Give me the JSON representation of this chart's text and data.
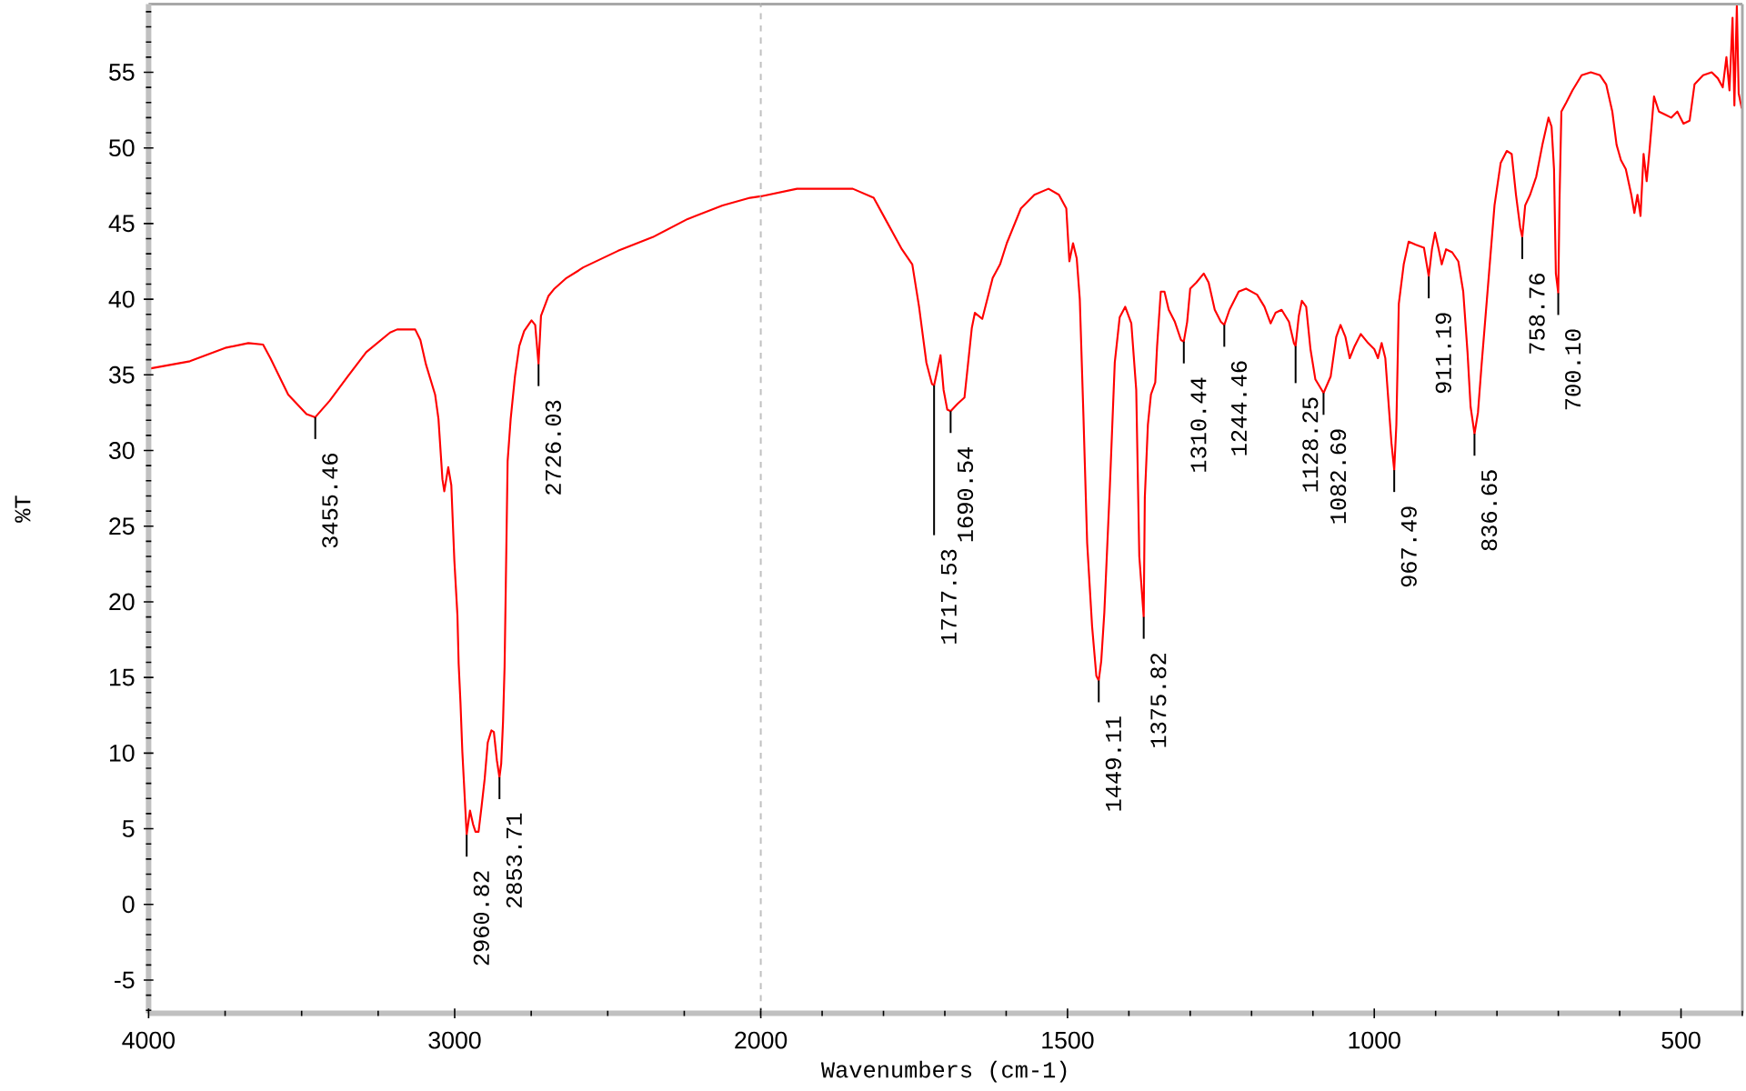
{
  "chart_data": [
    {
      "type": "line",
      "ylabel": "%T",
      "color": "#ff0000",
      "x": [
        4000,
        3865,
        3746,
        3674,
        3626,
        3602,
        3544,
        3484,
        3455.46,
        3408,
        3349,
        3289,
        3211,
        3188,
        3129,
        3112,
        3094,
        3064,
        3053,
        3040,
        3034,
        3021,
        3011,
        3001,
        2991,
        2987,
        2981,
        2975,
        2960.82,
        2950,
        2940,
        2932,
        2922,
        2912,
        2902,
        2892,
        2880,
        2872,
        2862,
        2853.71,
        2848,
        2842,
        2837,
        2833,
        2827,
        2817,
        2803,
        2789,
        2773,
        2749,
        2737,
        2726.03,
        2718,
        2694,
        2674,
        2635,
        2595,
        2580,
        2466,
        2353,
        2239,
        2125,
        2035,
        2000
      ],
      "values": [
        35.4,
        35.9,
        36.8,
        37.1,
        37.0,
        36.1,
        33.7,
        32.4,
        32.2,
        33.3,
        34.9,
        36.5,
        37.8,
        38.0,
        38.0,
        37.3,
        35.7,
        33.7,
        32.1,
        28.1,
        27.3,
        28.9,
        27.7,
        22.7,
        19.1,
        15.9,
        13.3,
        10.1,
        4.6,
        6.2,
        5.3,
        4.8,
        4.8,
        6.5,
        8.3,
        10.7,
        11.5,
        11.4,
        9.5,
        8.4,
        9.3,
        12.1,
        15.7,
        21.1,
        29.3,
        32.1,
        34.9,
        36.9,
        37.9,
        38.6,
        38.3,
        35.7,
        38.9,
        40.2,
        40.7,
        41.4,
        41.9,
        42.1,
        43.2,
        44.1,
        45.3,
        46.2,
        46.7,
        46.8
      ],
      "xlim": [
        4000,
        2000
      ],
      "xticks": [
        4000,
        3000,
        2000
      ],
      "ylim": [
        -7.2,
        59.5
      ],
      "yticks": [
        -5,
        0,
        5,
        10,
        15,
        20,
        25,
        30,
        35,
        40,
        45,
        50,
        55
      ],
      "ref_lines": [
        {
          "axis": "x",
          "value": 2000,
          "color": "#c0c0c0",
          "line_style": "dashed"
        }
      ],
      "annotations": [
        {
          "text": "3455.46",
          "x": 3455.46,
          "y": 32.2
        },
        {
          "text": "2960.82",
          "x": 2960.82,
          "y": 4.6
        },
        {
          "text": "2853.71",
          "x": 2853.71,
          "y": 8.4
        },
        {
          "text": "2726.03",
          "x": 2726.03,
          "y": 35.7
        }
      ]
    },
    {
      "type": "line",
      "xlabel": "Wavenumbers (cm-1)",
      "color": "#ff0000",
      "x": [
        2000,
        1941,
        1896,
        1850,
        1816,
        1793,
        1770,
        1753,
        1742,
        1730,
        1721,
        1717.53,
        1707,
        1702,
        1696,
        1690.54,
        1679,
        1668,
        1656,
        1651,
        1639,
        1622,
        1610,
        1599,
        1576,
        1554,
        1531,
        1514,
        1502,
        1497,
        1491,
        1485,
        1480,
        1474,
        1468,
        1460,
        1453,
        1449.11,
        1445,
        1440,
        1431,
        1423,
        1415,
        1406,
        1396,
        1388,
        1383,
        1375.82,
        1374,
        1369,
        1364,
        1357,
        1354,
        1348,
        1342,
        1335,
        1325,
        1315,
        1310.44,
        1305,
        1300,
        1290,
        1278,
        1270,
        1260,
        1250,
        1244.46,
        1236,
        1221,
        1209,
        1191,
        1179,
        1169,
        1161,
        1151,
        1139,
        1131,
        1128.25,
        1123,
        1118,
        1111,
        1104,
        1096,
        1082.69,
        1071,
        1062,
        1055,
        1047,
        1040,
        1032,
        1022,
        1010,
        1000,
        994,
        988,
        982,
        977,
        972,
        967.49,
        964,
        960,
        952,
        944,
        932,
        919,
        911.19,
        906,
        901,
        895,
        890,
        883,
        873,
        863,
        855,
        848,
        843,
        836.65,
        831,
        825,
        813,
        804,
        794,
        784,
        776,
        769,
        762,
        758.76,
        754,
        746,
        736,
        726,
        716,
        711,
        707,
        704,
        700.1,
        698,
        695,
        687,
        677,
        662,
        647,
        632,
        622,
        612,
        605,
        598,
        590,
        581,
        576,
        571,
        566,
        561,
        556,
        551,
        544,
        536,
        526,
        516,
        506,
        496,
        486,
        478,
        464,
        450,
        440,
        432,
        426,
        421,
        416,
        413,
        409,
        406,
        401
      ],
      "values": [
        46.8,
        47.3,
        47.3,
        47.3,
        46.7,
        45.0,
        43.3,
        42.3,
        39.5,
        35.8,
        34.4,
        34.3,
        36.3,
        34.0,
        32.7,
        32.6,
        33.1,
        33.5,
        38.1,
        39.1,
        38.7,
        41.4,
        42.3,
        43.7,
        46.0,
        46.9,
        47.3,
        46.9,
        46.0,
        42.5,
        43.7,
        42.7,
        40.0,
        32.2,
        23.9,
        18.4,
        15.1,
        14.8,
        16.1,
        19.3,
        27.6,
        35.8,
        38.8,
        39.5,
        38.4,
        34.0,
        23.0,
        19.0,
        26.9,
        31.7,
        33.7,
        34.5,
        36.9,
        40.5,
        40.5,
        39.3,
        38.5,
        37.3,
        37.2,
        38.5,
        40.7,
        41.1,
        41.7,
        41.1,
        39.3,
        38.5,
        38.3,
        39.3,
        40.5,
        40.7,
        40.3,
        39.5,
        38.4,
        39.1,
        39.3,
        38.5,
        37.1,
        36.9,
        38.9,
        39.9,
        39.5,
        36.7,
        34.7,
        33.8,
        34.9,
        37.5,
        38.3,
        37.5,
        36.1,
        36.9,
        37.7,
        37.1,
        36.7,
        36.1,
        37.1,
        36.1,
        33.3,
        30.5,
        28.7,
        31.7,
        39.7,
        42.3,
        43.8,
        43.6,
        43.4,
        41.5,
        43.3,
        44.4,
        43.3,
        42.3,
        43.3,
        43.1,
        42.5,
        40.5,
        36.5,
        32.9,
        31.1,
        32.5,
        35.7,
        41.7,
        46.2,
        49.0,
        49.8,
        49.6,
        46.9,
        44.7,
        44.1,
        46.2,
        46.9,
        48.1,
        50.2,
        52.0,
        51.4,
        48.6,
        41.7,
        40.4,
        46.6,
        52.4,
        53.0,
        53.8,
        54.8,
        55.0,
        54.8,
        54.2,
        52.4,
        50.2,
        49.2,
        48.6,
        46.9,
        45.7,
        46.9,
        45.5,
        49.6,
        47.8,
        50.0,
        53.4,
        52.4,
        52.2,
        52.0,
        52.4,
        51.6,
        51.8,
        54.2,
        54.8,
        55.0,
        54.6,
        54.0,
        56.0,
        53.8,
        58.6,
        52.8,
        59.4,
        53.6,
        52.6
      ],
      "xlim": [
        2000,
        400
      ],
      "xticks": [
        1500,
        1000,
        500
      ],
      "ylim": [
        -7.2,
        59.5
      ],
      "tick_labels": "x",
      "annotations": [
        {
          "text": "1717.53",
          "x": 1717.53,
          "y": 34.3
        },
        {
          "text": "1690.54",
          "x": 1690.54,
          "y": 32.6
        },
        {
          "text": "1449.11",
          "x": 1449.11,
          "y": 14.8
        },
        {
          "text": "1375.82",
          "x": 1375.82,
          "y": 19.0
        },
        {
          "text": "1310.44",
          "x": 1310.44,
          "y": 37.2
        },
        {
          "text": "1244.46",
          "x": 1244.46,
          "y": 38.3
        },
        {
          "text": "1128.25",
          "x": 1128.25,
          "y": 36.9
        },
        {
          "text": "1082.69",
          "x": 1082.69,
          "y": 33.8
        },
        {
          "text": "967.49",
          "x": 967.49,
          "y": 28.7
        },
        {
          "text": "911.19",
          "x": 911.19,
          "y": 41.5
        },
        {
          "text": "836.65",
          "x": 836.65,
          "y": 31.1
        },
        {
          "text": "758.76",
          "x": 758.76,
          "y": 44.1
        },
        {
          "text": "700.10",
          "x": 700.1,
          "y": 40.4
        }
      ]
    }
  ]
}
